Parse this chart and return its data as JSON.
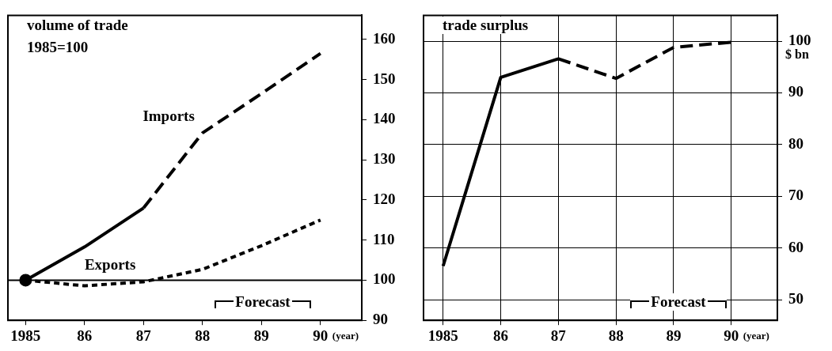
{
  "chart_data": [
    {
      "type": "line",
      "title": "volume of trade",
      "subtitle": "1985=100",
      "xlabel": "(year)",
      "xlim": [
        1984.7,
        1990.7
      ],
      "xticks": [
        {
          "value": 1985,
          "label": "1985"
        },
        {
          "value": 1986,
          "label": "86"
        },
        {
          "value": 1987,
          "label": "87"
        },
        {
          "value": 1988,
          "label": "88"
        },
        {
          "value": 1989,
          "label": "89"
        },
        {
          "value": 1990,
          "label": "90"
        }
      ],
      "ylim": [
        90,
        166
      ],
      "yticks": [
        90,
        100,
        110,
        120,
        130,
        140,
        150,
        160
      ],
      "grid": false,
      "series": [
        {
          "type": "line",
          "x": [
            1985,
            1986,
            1987
          ],
          "values": [
            100,
            108.3,
            118
          ],
          "color": "#000000",
          "line_style": "solid",
          "marker": "none"
        },
        {
          "name": "Imports",
          "type": "line",
          "x": [
            1987,
            1988,
            1989,
            1990
          ],
          "values": [
            118,
            136.7,
            146.5,
            156.5
          ],
          "color": "#000000",
          "line_style": "dashed",
          "marker": "none"
        },
        {
          "name": "Exports",
          "type": "line",
          "x": [
            1985,
            1986,
            1987,
            1988,
            1989,
            1990
          ],
          "values": [
            100,
            98.6,
            99.6,
            102.7,
            108.6,
            115
          ],
          "color": "#000000",
          "line_style": "dotted",
          "marker": "none"
        },
        {
          "type": "scatter",
          "x": [
            1985
          ],
          "values": [
            100
          ],
          "color": "#000000",
          "marker": "circle"
        }
      ],
      "ref_lines": [
        {
          "axis": "y",
          "value": 100,
          "color": "#000000"
        }
      ],
      "annotations": [
        "Forecast"
      ]
    },
    {
      "type": "line",
      "title": "trade surplus",
      "ylabel": "$ bn",
      "xlabel": "(year)",
      "xlim": [
        1984.66,
        1990.8
      ],
      "xticks": [
        {
          "value": 1985,
          "label": "1985"
        },
        {
          "value": 1986,
          "label": "86"
        },
        {
          "value": 1987,
          "label": "87"
        },
        {
          "value": 1988,
          "label": "88"
        },
        {
          "value": 1989,
          "label": "89"
        },
        {
          "value": 1990,
          "label": "90"
        }
      ],
      "ylim": [
        46,
        105
      ],
      "yticks": [
        50,
        60,
        70,
        80,
        90,
        100
      ],
      "grid": true,
      "series": [
        {
          "type": "line",
          "x": [
            1985,
            1986,
            1987
          ],
          "values": [
            56.5,
            93,
            96.6
          ],
          "color": "#000000",
          "line_style": "solid",
          "marker": "none"
        },
        {
          "type": "line",
          "x": [
            1987,
            1988,
            1989,
            1990
          ],
          "values": [
            96.6,
            92.8,
            98.8,
            99.8
          ],
          "color": "#000000",
          "line_style": "dashed",
          "marker": "none"
        }
      ],
      "annotations": [
        "Forecast"
      ]
    }
  ]
}
